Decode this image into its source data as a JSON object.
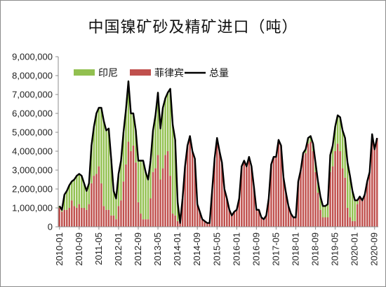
{
  "chart_data": {
    "type": "bar",
    "title": "中国镍矿砂及精矿进口（吨）",
    "stacked": true,
    "y_axis": {
      "min": 0,
      "max": 9000000,
      "ticks": [
        "0",
        "1,000,000",
        "2,000,000",
        "3,000,000",
        "4,000,000",
        "5,000,000",
        "6,000,000",
        "7,000,000",
        "8,000,000",
        "9,000,000"
      ],
      "grid": false
    },
    "x_axis": {
      "start": "2010-01",
      "end": "2020-10",
      "ticks": [
        "2010-01",
        "2010-09",
        "2011-05",
        "2012-01",
        "2012-09",
        "2013-05",
        "2014-01",
        "2014-09",
        "2015-05",
        "2016-01",
        "2016-09",
        "2017-05",
        "2018-01",
        "2018-09",
        "2019-05",
        "2020-01",
        "2020-09"
      ]
    },
    "legend_position": "top-left",
    "series": [
      {
        "name": "印尼",
        "color": "#92c050",
        "values": [
          100000,
          100000,
          800000,
          1000000,
          1200000,
          1000000,
          1400000,
          1700000,
          1600000,
          1700000,
          1300000,
          1000000,
          1100000,
          2000000,
          2600000,
          3200000,
          3100000,
          4000000,
          4500000,
          4200000,
          4300000,
          3000000,
          1300000,
          1100000,
          1700000,
          2100000,
          2600000,
          2900000,
          3200000,
          2000000,
          1700000,
          1700000,
          2200000,
          2800000,
          3100000,
          2500000,
          2100000,
          2000000,
          2200000,
          2800000,
          3300000,
          2700000,
          3200000,
          3000000,
          3100000,
          4600000,
          4700000,
          4000000,
          1000000,
          0,
          0,
          0,
          0,
          0,
          0,
          0,
          0,
          0,
          0,
          0,
          0,
          0,
          0,
          0,
          0,
          0,
          0,
          0,
          0,
          0,
          0,
          0,
          0,
          0,
          0,
          0,
          0,
          0,
          0,
          0,
          0,
          0,
          0,
          0,
          0,
          0,
          0,
          0,
          0,
          0,
          0,
          0,
          0,
          0,
          0,
          0,
          0,
          0,
          0,
          100000,
          200000,
          300000,
          300000,
          400000,
          500000,
          600000,
          700000,
          600000,
          600000,
          700000,
          900000,
          1100000,
          1300000,
          1500000,
          1800000,
          2000000,
          2100000,
          2400000,
          2200000,
          1600000,
          1100000,
          200000,
          0,
          0,
          0,
          0,
          0,
          0,
          0,
          0
        ]
      },
      {
        "name": "菲律宾",
        "color": "#c0504d",
        "values": [
          1000000,
          800000,
          900000,
          900000,
          1000000,
          1400000,
          1100000,
          1000000,
          1200000,
          1000000,
          1000000,
          900000,
          1200000,
          2300000,
          2700000,
          2800000,
          3200000,
          2300000,
          1100000,
          900000,
          900000,
          600000,
          600000,
          400000,
          1100000,
          1400000,
          2400000,
          3300000,
          4500000,
          4000000,
          4300000,
          3400000,
          1300000,
          700000,
          400000,
          400000,
          400000,
          1500000,
          2900000,
          3100000,
          3800000,
          2500000,
          3100000,
          3800000,
          4000000,
          2700000,
          700000,
          600000,
          300000,
          200000,
          1500000,
          3200000,
          4300000,
          4800000,
          4000000,
          3600000,
          1200000,
          800000,
          400000,
          300000,
          200000,
          200000,
          1900000,
          3600000,
          4700000,
          4000000,
          3400000,
          2000000,
          1500000,
          900000,
          600000,
          800000,
          900000,
          1500000,
          3200000,
          3500000,
          3200000,
          3700000,
          3200000,
          2100000,
          900000,
          900000,
          500000,
          400000,
          600000,
          1500000,
          3300000,
          3700000,
          3700000,
          4600000,
          4300000,
          2600000,
          1800000,
          1100000,
          700000,
          500000,
          500000,
          2400000,
          3000000,
          3800000,
          3900000,
          4400000,
          4500000,
          4000000,
          2900000,
          1800000,
          900000,
          500000,
          500000,
          500000,
          2900000,
          3200000,
          4000000,
          4400000,
          4000000,
          3100000,
          2600000,
          1000000,
          500000,
          300000,
          300000,
          1200000,
          1600000,
          1400000,
          1700000,
          2400000,
          2900000,
          4900000,
          4100000,
          4700000
        ]
      }
    ],
    "total": {
      "name": "总量",
      "color": "#000000",
      "values": [
        1100000,
        900000,
        1700000,
        1900000,
        2200000,
        2400000,
        2500000,
        2700000,
        2800000,
        2700000,
        2300000,
        1900000,
        2300000,
        4300000,
        5300000,
        6000000,
        6300000,
        6300000,
        5600000,
        5100000,
        5200000,
        3600000,
        1900000,
        1500000,
        2800000,
        3500000,
        5000000,
        6200000,
        7700000,
        6000000,
        6000000,
        5100000,
        3500000,
        3500000,
        3500000,
        2900000,
        2500000,
        3500000,
        5100000,
        5900000,
        7100000,
        5200000,
        6300000,
        6800000,
        7100000,
        7300000,
        5400000,
        4600000,
        1300000,
        200000,
        1500000,
        3200000,
        4300000,
        4800000,
        4000000,
        3600000,
        1200000,
        800000,
        400000,
        300000,
        200000,
        200000,
        1900000,
        3600000,
        4700000,
        4000000,
        3400000,
        2000000,
        1500000,
        900000,
        600000,
        800000,
        900000,
        1500000,
        3200000,
        3500000,
        3200000,
        3700000,
        3200000,
        2100000,
        900000,
        900000,
        500000,
        400000,
        600000,
        1500000,
        3300000,
        3700000,
        3700000,
        4600000,
        4300000,
        2600000,
        1800000,
        1100000,
        700000,
        500000,
        500000,
        2400000,
        3000000,
        3900000,
        4100000,
        4700000,
        4800000,
        4400000,
        3400000,
        2400000,
        1600000,
        1100000,
        1100000,
        1200000,
        3800000,
        4300000,
        5300000,
        5900000,
        5800000,
        5100000,
        4700000,
        3400000,
        2700000,
        1900000,
        1400000,
        1400000,
        1600000,
        1400000,
        1700000,
        2400000,
        2900000,
        4900000,
        4100000,
        4700000
      ]
    }
  }
}
